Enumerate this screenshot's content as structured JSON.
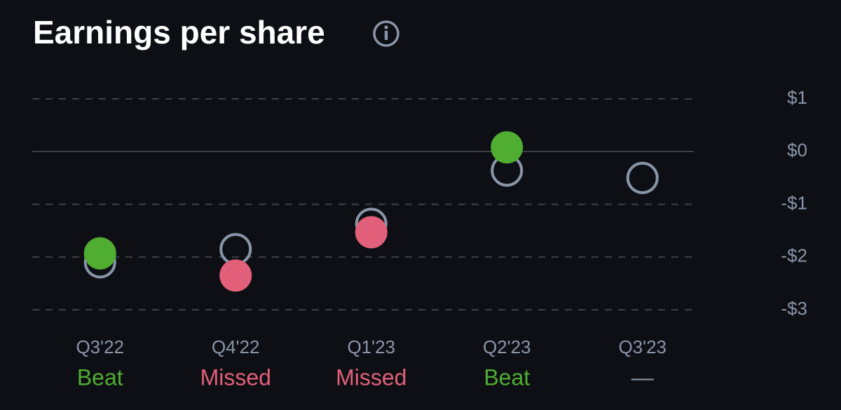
{
  "chart_data": {
    "type": "scatter",
    "title": "Earnings per share",
    "categories": [
      "Q3'22",
      "Q4'22",
      "Q1'23",
      "Q2'23",
      "Q3'23"
    ],
    "series": [
      {
        "color": "#8995a8",
        "hollow": true,
        "values": [
          -2.1,
          -1.85,
          -1.37,
          -0.36,
          -0.5
        ]
      },
      {
        "colors": [
          "#4fae32",
          "#e2607a",
          "#e2607a",
          "#4fae32",
          null
        ],
        "values": [
          -1.93,
          -2.35,
          -1.53,
          0.08,
          null
        ]
      }
    ],
    "results": {
      "labels": [
        "Beat",
        "Missed",
        "Missed",
        "Beat",
        "—"
      ],
      "colors": [
        "#4fae32",
        "#e2607a",
        "#e2607a",
        "#4fae32",
        "#8995a8"
      ]
    },
    "ylim": [
      -3,
      1
    ],
    "yticks": [
      {
        "value": 1,
        "label": "$1"
      },
      {
        "value": 0,
        "label": "$0"
      },
      {
        "value": -1,
        "label": "-$1"
      },
      {
        "value": -2,
        "label": "-$2"
      },
      {
        "value": -3,
        "label": "-$3"
      }
    ],
    "grid": true,
    "zero_line": true
  }
}
